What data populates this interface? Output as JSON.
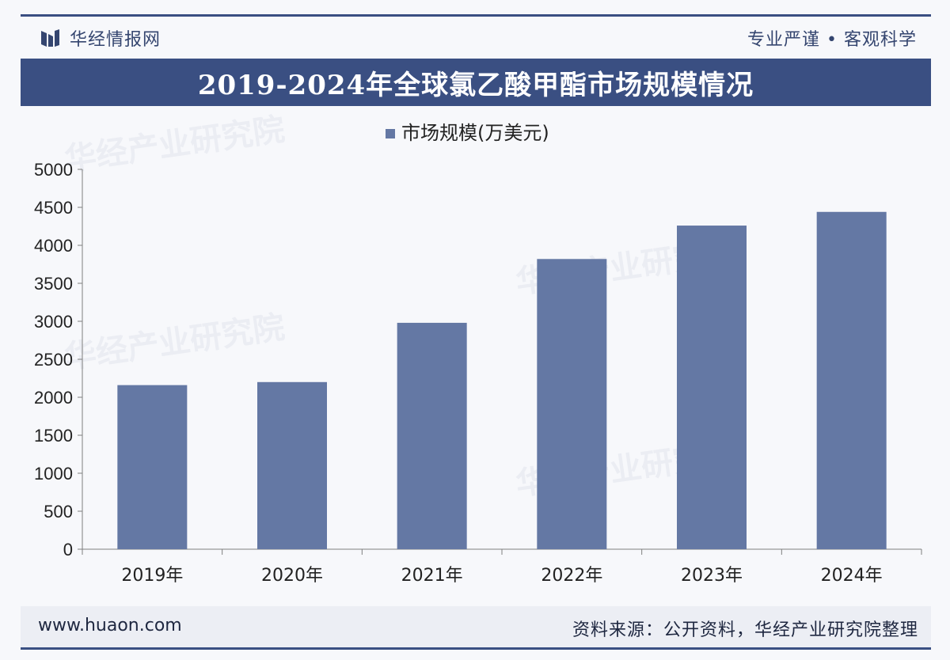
{
  "header": {
    "brand_name": "华经情报网",
    "slogan": "专业严谨 • 客观科学"
  },
  "title": "2019-2024年全球氯乙酸甲酯市场规模情况",
  "chart_data": {
    "type": "bar",
    "categories": [
      "2019年",
      "2020年",
      "2021年",
      "2022年",
      "2023年",
      "2024年"
    ],
    "series": [
      {
        "name": "市场规模(万美元)",
        "values": [
          2160,
          2200,
          2980,
          3820,
          4260,
          4440
        ]
      }
    ],
    "ylim": [
      0,
      5000
    ],
    "yticks": [
      0,
      500,
      1000,
      1500,
      2000,
      2500,
      3000,
      3500,
      4000,
      4500,
      5000
    ],
    "legend_position": "top-center",
    "grid": false,
    "bar_color": "#6478a4"
  },
  "watermarks": {
    "text": "华经产业研究院",
    "url": "www.huaon.com"
  },
  "footer": {
    "url": "www.huaon.com",
    "source": "资料来源：公开资料，华经产业研究院整理"
  },
  "colors": {
    "primary": "#3a4f82",
    "bar": "#6478a4"
  }
}
